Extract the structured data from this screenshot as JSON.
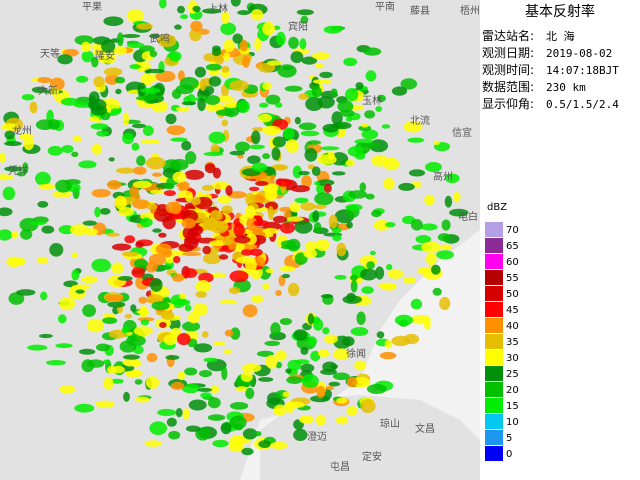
{
  "panel": {
    "title": "基本反射率",
    "fields": [
      {
        "label": "雷达站名:",
        "value": "北 海"
      },
      {
        "label": "观测日期:",
        "value": "2019-08-02"
      },
      {
        "label": "观测时间:",
        "value": "14:07:18BJT"
      },
      {
        "label": "数据范围:",
        "value": "230 km"
      },
      {
        "label": "显示仰角:",
        "value": "0.5/1.5/2.4"
      }
    ]
  },
  "legend": {
    "unit": "dBZ",
    "levels": [
      {
        "label": "70",
        "color": "#b49ee6"
      },
      {
        "label": "65",
        "color": "#8c2c96"
      },
      {
        "label": "60",
        "color": "#ff00f0"
      },
      {
        "label": "55",
        "color": "#b40000"
      },
      {
        "label": "50",
        "color": "#d60000"
      },
      {
        "label": "45",
        "color": "#ff0000"
      },
      {
        "label": "40",
        "color": "#ff9000"
      },
      {
        "label": "35",
        "color": "#e6be00"
      },
      {
        "label": "30",
        "color": "#ffff00"
      },
      {
        "label": "25",
        "color": "#00900a"
      },
      {
        "label": "20",
        "color": "#00c000"
      },
      {
        "label": "15",
        "color": "#00ec00"
      },
      {
        "label": "10",
        "color": "#00c8f0"
      },
      {
        "label": "5",
        "color": "#1e96f0"
      },
      {
        "label": "0",
        "color": "#0000f6"
      }
    ]
  },
  "map_labels": [
    "平果",
    "上林",
    "宾阳",
    "平南",
    "藤县",
    "梧州",
    "天等",
    "武鸣",
    "隆安",
    "大新",
    "玉林",
    "北流",
    "信宜",
    "龙州",
    "凭祥",
    "高州",
    "电白",
    "徐闻",
    "琼山",
    "文昌",
    "澄迈",
    "定安",
    "屯昌"
  ]
}
